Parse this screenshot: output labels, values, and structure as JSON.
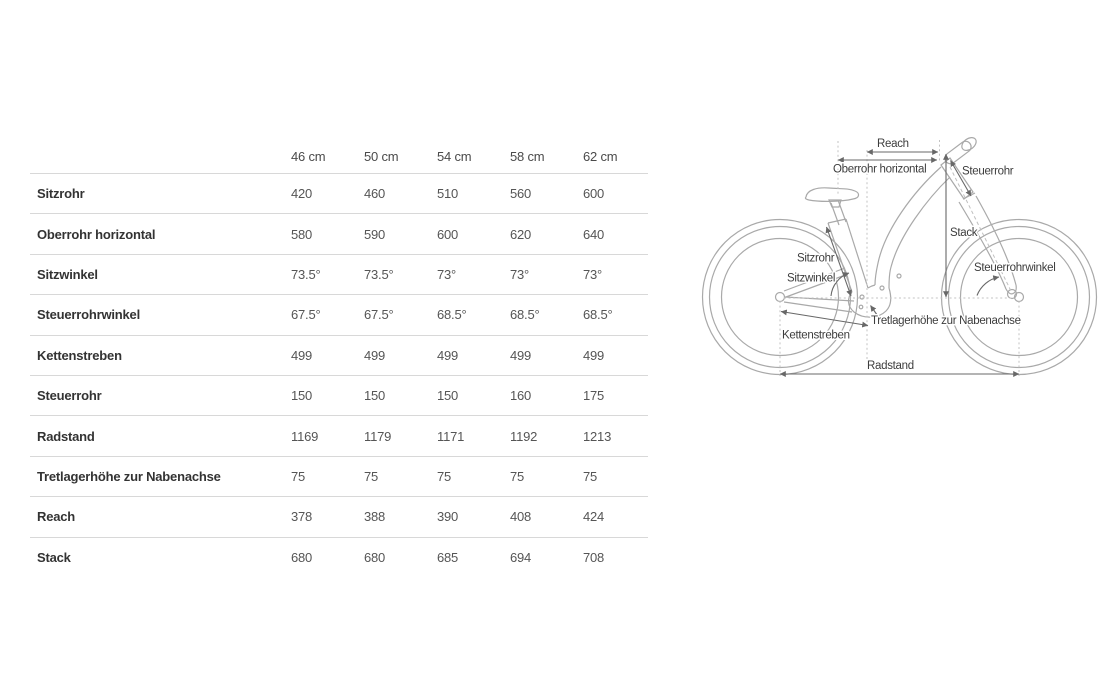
{
  "table": {
    "columns": [
      "46 cm",
      "50 cm",
      "54 cm",
      "58 cm",
      "62 cm"
    ],
    "rows": [
      {
        "label": "Sitzrohr",
        "values": [
          "420",
          "460",
          "510",
          "560",
          "600"
        ]
      },
      {
        "label": "Oberrohr horizontal",
        "values": [
          "580",
          "590",
          "600",
          "620",
          "640"
        ]
      },
      {
        "label": "Sitzwinkel",
        "values": [
          "73.5°",
          "73.5°",
          "73°",
          "73°",
          "73°"
        ]
      },
      {
        "label": "Steuerrohrwinkel",
        "values": [
          "67.5°",
          "67.5°",
          "68.5°",
          "68.5°",
          "68.5°"
        ]
      },
      {
        "label": "Kettenstreben",
        "values": [
          "499",
          "499",
          "499",
          "499",
          "499"
        ]
      },
      {
        "label": "Steuerrohr",
        "values": [
          "150",
          "150",
          "150",
          "160",
          "175"
        ]
      },
      {
        "label": "Radstand",
        "values": [
          "1169",
          "1179",
          "1171",
          "1192",
          "1213"
        ]
      },
      {
        "label": "Tretlagerhöhe zur Nabenachse",
        "values": [
          "75",
          "75",
          "75",
          "75",
          "75"
        ]
      },
      {
        "label": "Reach",
        "values": [
          "378",
          "388",
          "390",
          "408",
          "424"
        ]
      },
      {
        "label": "Stack",
        "values": [
          "680",
          "680",
          "685",
          "694",
          "708"
        ]
      }
    ]
  },
  "diagram": {
    "labels": {
      "reach": "Reach",
      "oberrohr": "Oberrohr horizontal",
      "steuerrohr": "Steuerrohr",
      "stack": "Stack",
      "steuerrohrwinkel": "Steuerrohrwinkel",
      "sitzrohr": "Sitzrohr",
      "sitzwinkel": "Sitzwinkel",
      "tretlager": "Tretlagerhöhe zur Nabenachse",
      "kettenstreben": "Kettenstreben",
      "radstand": "Radstand"
    }
  },
  "colors": {
    "table_line": "#d8d8d8",
    "row_label_text": "#333333",
    "cell_text": "#555555",
    "bike_line": "#a9a9a9",
    "dimension_line": "#686868",
    "label_text": "#3d3d3d",
    "background": "#ffffff"
  }
}
